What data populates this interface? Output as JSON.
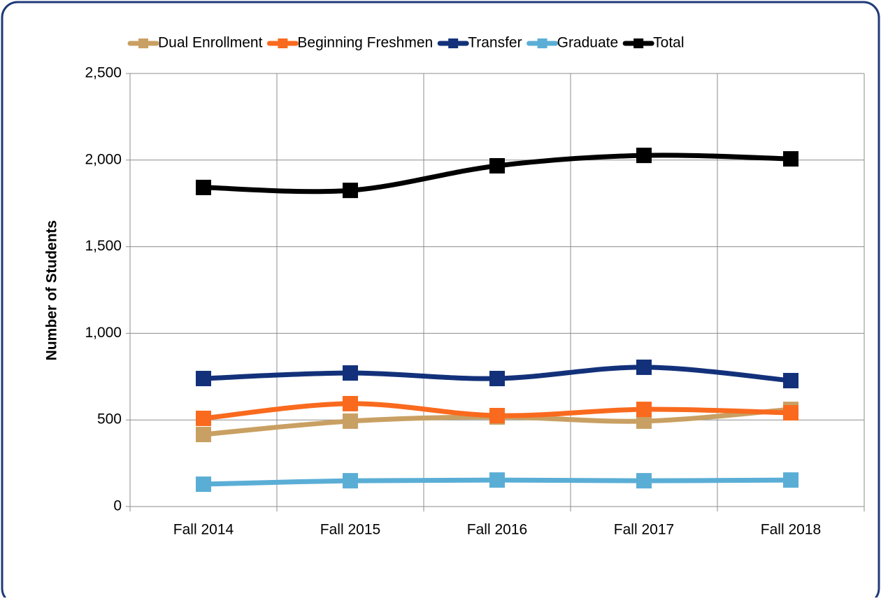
{
  "chart_data": {
    "type": "line",
    "y_label": "Number of Students",
    "categories": [
      "Fall 2014",
      "Fall 2015",
      "Fall 2016",
      "Fall 2017",
      "Fall 2018"
    ],
    "series": [
      {
        "name": "Dual Enrollment",
        "color": "#c9a063",
        "values": [
          416,
          493,
          517,
          493,
          561
        ]
      },
      {
        "name": "Beginning Freshmen",
        "color": "#f96a1e",
        "values": [
          509,
          594,
          525,
          561,
          541
        ]
      },
      {
        "name": "Transfer",
        "color": "#13317a",
        "values": [
          739,
          771,
          739,
          804,
          727
        ]
      },
      {
        "name": "Graduate",
        "color": "#5aaed6",
        "values": [
          129,
          149,
          153,
          149,
          153
        ]
      },
      {
        "name": "Total",
        "color": "#000000",
        "values": [
          1842,
          1825,
          1967,
          2027,
          2007
        ]
      }
    ],
    "ylim": [
      0,
      2500
    ],
    "yticks": [
      0,
      500,
      {
        "value": 1000,
        "label": "1,000"
      },
      {
        "value": 1500,
        "label": "1,500"
      },
      {
        "value": 2000,
        "label": "2,000"
      },
      {
        "value": 2500,
        "label": "2,500"
      }
    ],
    "grid": true,
    "legend": "top"
  }
}
